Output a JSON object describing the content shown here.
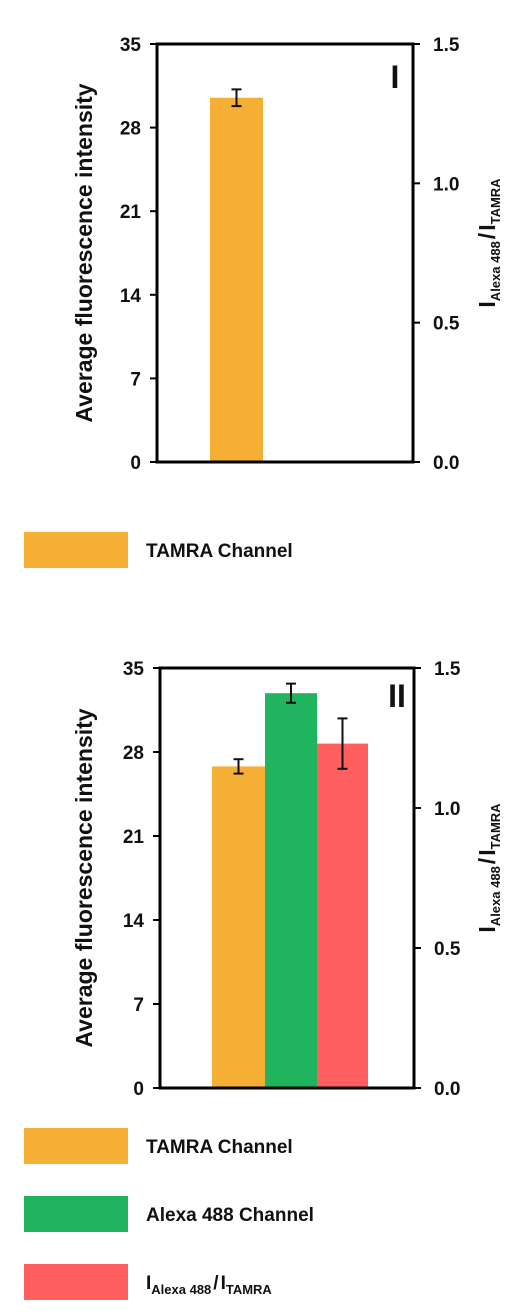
{
  "chart_data": [
    {
      "type": "bar",
      "panel_label": "I",
      "ylabel_left": "Average fluorescence intensity",
      "ylabel_right": {
        "main": "I",
        "sub1": "Alexa 488",
        "sep": "/",
        "main2": "I",
        "sub2": "TAMRA"
      },
      "ylim_left": [
        0,
        35
      ],
      "yticks_left": [
        "0",
        "7",
        "14",
        "21",
        "28",
        "35"
      ],
      "ylim_right": [
        0,
        1.5
      ],
      "yticks_right": [
        "0.0",
        "0.5",
        "1.0",
        "1.5"
      ],
      "grid": false,
      "series": [
        {
          "name": "TAMRA Channel",
          "axis": "left",
          "value": 30.5,
          "error": 0.7,
          "color": "#F5AF35"
        }
      ],
      "legend": [
        {
          "label": "TAMRA Channel",
          "color": "#F5AF35"
        }
      ]
    },
    {
      "type": "bar",
      "panel_label": "II",
      "ylabel_left": "Average fluorescence intensity",
      "ylabel_right": {
        "main": "I",
        "sub1": "Alexa 488",
        "sep": "/",
        "main2": "I",
        "sub2": "TAMRA"
      },
      "ylim_left": [
        0,
        35
      ],
      "yticks_left": [
        "0",
        "7",
        "14",
        "21",
        "28",
        "35"
      ],
      "ylim_right": [
        0,
        1.5
      ],
      "yticks_right": [
        "0.0",
        "0.5",
        "1.0",
        "1.5"
      ],
      "grid": false,
      "series": [
        {
          "name": "TAMRA Channel",
          "axis": "left",
          "value": 26.8,
          "error": 0.6,
          "color": "#F5AF35"
        },
        {
          "name": "Alexa 488 Channel",
          "axis": "left",
          "value": 32.9,
          "error": 0.8,
          "color": "#20B45E"
        },
        {
          "name": "I Alexa 488 / I TAMRA",
          "axis": "right",
          "value": 1.23,
          "error": 0.09,
          "color": "#FF5F5F"
        }
      ],
      "legend": [
        {
          "label": "TAMRA Channel",
          "color": "#F5AF35"
        },
        {
          "label": "Alexa 488 Channel",
          "color": "#20B45E"
        },
        {
          "label": {
            "main": "I",
            "sub1": "Alexa 488",
            "sep": "/",
            "main2": "I",
            "sub2": "TAMRA"
          },
          "color": "#FF5F5F"
        }
      ]
    }
  ]
}
